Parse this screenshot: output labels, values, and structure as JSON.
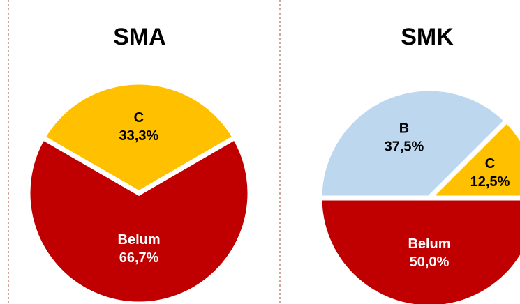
{
  "chart_data": [
    {
      "type": "pie",
      "title": "SMA",
      "categories": [
        "C",
        "Belum"
      ],
      "values": [
        33.3,
        66.7
      ],
      "value_labels": [
        "33,3%",
        "66,7%"
      ],
      "colors": [
        "#ffc000",
        "#c00000"
      ]
    },
    {
      "type": "pie",
      "title": "SMK",
      "categories": [
        "Belum",
        "B",
        "C"
      ],
      "values": [
        50.0,
        37.5,
        12.5
      ],
      "value_labels": [
        "50,0%",
        "37,5%",
        "12,5%"
      ],
      "colors": [
        "#c00000",
        "#bdd7ee",
        "#ffc000"
      ]
    }
  ]
}
